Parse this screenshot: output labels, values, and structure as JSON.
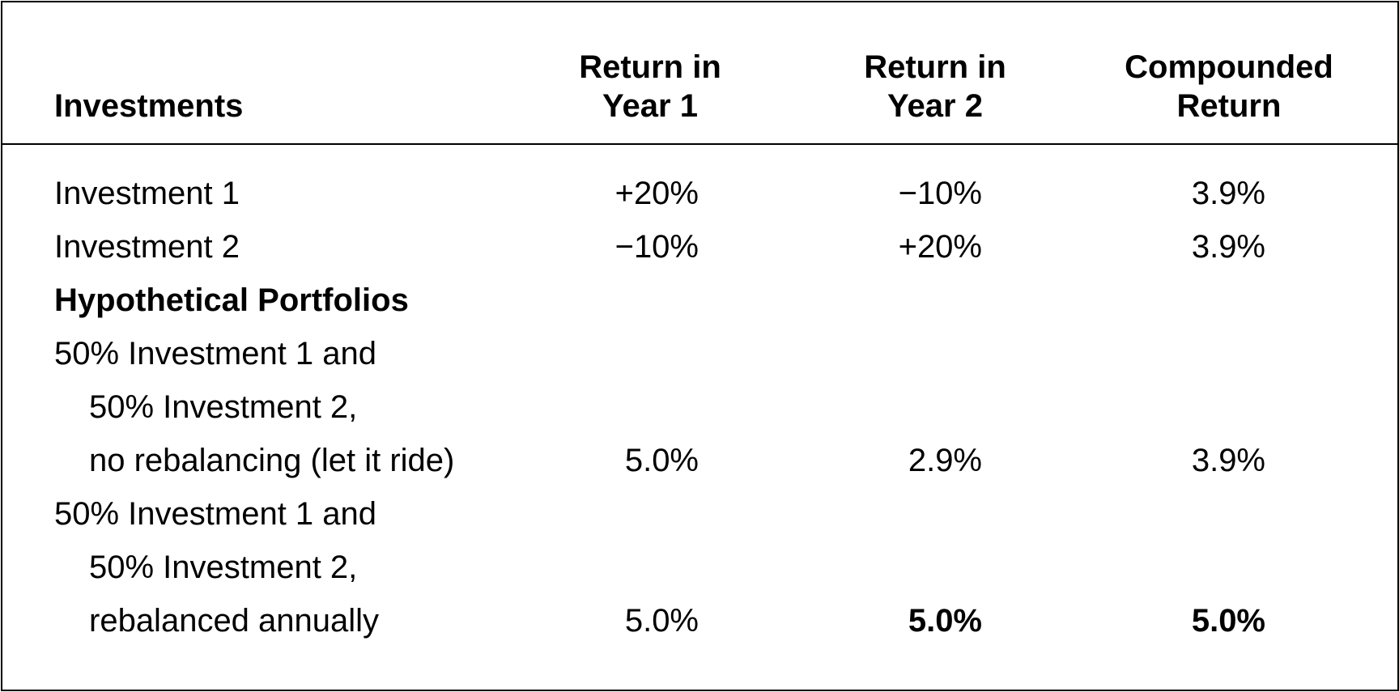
{
  "header": {
    "investments": "Investments",
    "return_year1": [
      "Return in",
      "Year 1"
    ],
    "return_year2": [
      "Return in",
      "Year 2"
    ],
    "compounded_return": [
      "Compounded",
      "Return"
    ]
  },
  "rows": [
    {
      "label": "Investment 1",
      "y1": "+20%",
      "y2": "−10%",
      "comp": "3.9%"
    },
    {
      "label": "Investment 2",
      "y1": "−10%",
      "y2": "+20%",
      "comp": "3.9%"
    },
    {
      "label": "Hypothetical Portfolios"
    },
    {
      "label": "50% Investment 1 and"
    },
    {
      "label": "50% Investment 2,"
    },
    {
      "label": "no rebalancing (let it ride)",
      "y1": "5.0%",
      "y2": "2.9%",
      "comp": "3.9%"
    },
    {
      "label": "50% Investment 1 and"
    },
    {
      "label": "50% Investment 2,"
    },
    {
      "label": "rebalanced annually",
      "y1": "5.0%",
      "y2": "5.0%",
      "comp": "5.0%"
    }
  ]
}
